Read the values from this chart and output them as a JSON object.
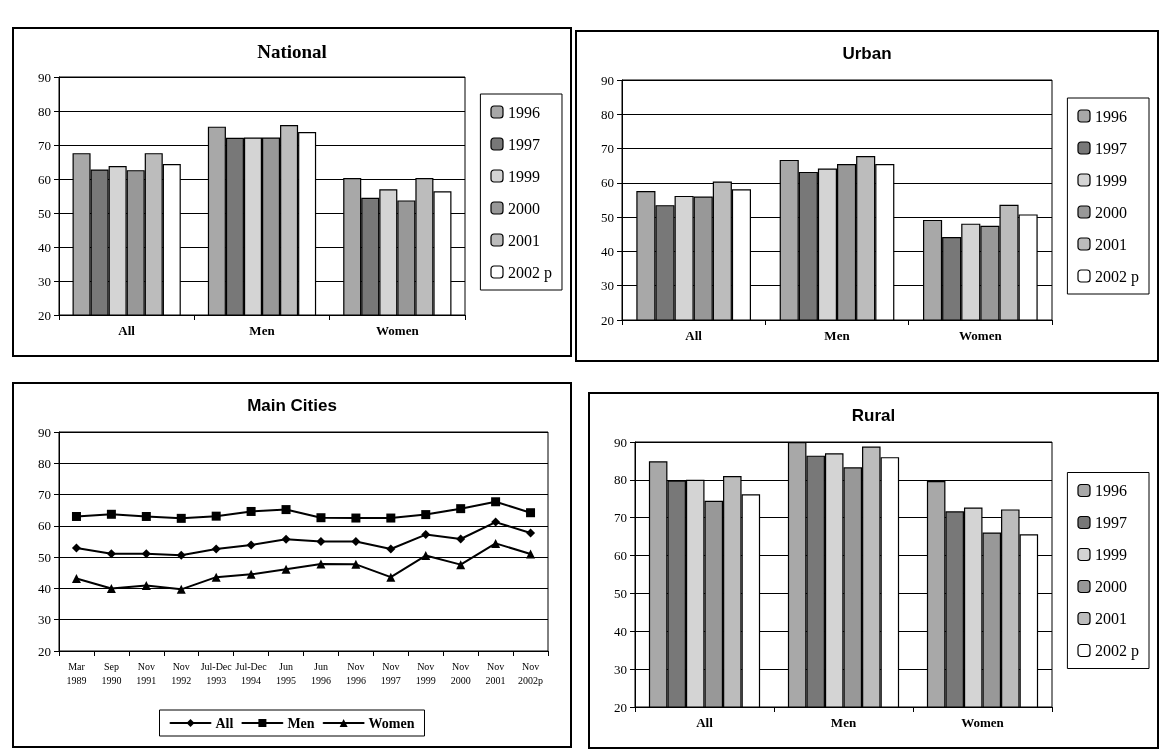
{
  "chart_data": [
    {
      "type": "bar",
      "title": "National",
      "categories": [
        "All",
        "Men",
        "Women"
      ],
      "ylim": [
        20,
        90
      ],
      "yticks": [
        20,
        30,
        40,
        50,
        60,
        70,
        80,
        90
      ],
      "grid": "y",
      "legend": "right",
      "series": [
        {
          "name": "1996",
          "color": "#a8a8a8",
          "values": [
            67.6,
            75.4,
            60.3
          ]
        },
        {
          "name": "1997",
          "color": "#787878",
          "values": [
            62.8,
            72.1,
            54.5
          ]
        },
        {
          "name": "1999",
          "color": "#d4d4d4",
          "values": [
            63.8,
            72.2,
            57.0
          ]
        },
        {
          "name": "2000",
          "color": "#989898",
          "values": [
            62.6,
            72.2,
            53.7
          ]
        },
        {
          "name": "2001",
          "color": "#bcbcbc",
          "values": [
            67.6,
            75.9,
            60.3
          ]
        },
        {
          "name": "2002 p",
          "color": "#ffffff",
          "values": [
            64.4,
            73.8,
            56.4
          ]
        }
      ]
    },
    {
      "type": "bar",
      "title": "Urban",
      "categories": [
        "All",
        "Men",
        "Women"
      ],
      "ylim": [
        20,
        90
      ],
      "yticks": [
        20,
        30,
        40,
        50,
        60,
        70,
        80,
        90
      ],
      "grid": "y",
      "legend": "right",
      "series": [
        {
          "name": "1996",
          "color": "#a8a8a8",
          "values": [
            57.6,
            66.7,
            49.2
          ]
        },
        {
          "name": "1997",
          "color": "#787878",
          "values": [
            53.5,
            63.2,
            44.2
          ]
        },
        {
          "name": "1999",
          "color": "#d4d4d4",
          "values": [
            56.2,
            64.2,
            48.1
          ]
        },
        {
          "name": "2000",
          "color": "#989898",
          "values": [
            56.0,
            65.5,
            47.5
          ]
        },
        {
          "name": "2001",
          "color": "#bcbcbc",
          "values": [
            60.4,
            67.8,
            53.6
          ]
        },
        {
          "name": "2002 p",
          "color": "#ffffff",
          "values": [
            58.1,
            65.5,
            50.8
          ]
        }
      ]
    },
    {
      "type": "line",
      "title": "Main Cities",
      "categories": [
        "Mar 1989",
        "Sep 1990",
        "Nov 1991",
        "Nov 1992",
        "Jul-Dec 1993",
        "Jul-Dec 1994",
        "Jun 1995",
        "Jun 1996",
        "Nov 1996",
        "Nov 1997",
        "Nov 1999",
        "Nov 2000",
        "Nov 2001",
        "Nov 2002p"
      ],
      "ylim": [
        20,
        90
      ],
      "yticks": [
        20,
        30,
        40,
        50,
        60,
        70,
        80,
        90
      ],
      "grid": "y",
      "legend": "bottom",
      "line_style": "solid",
      "series": [
        {
          "name": "All",
          "color": "#000000",
          "marker": "diamond",
          "values": [
            52.9,
            51.1,
            51.1,
            50.6,
            52.6,
            53.9,
            55.7,
            55.0,
            55.0,
            52.6,
            57.2,
            55.8,
            61.2,
            57.7
          ]
        },
        {
          "name": "Men",
          "color": "#000000",
          "marker": "square",
          "values": [
            63.0,
            63.7,
            63.0,
            62.4,
            63.1,
            64.6,
            65.2,
            62.6,
            62.5,
            62.5,
            63.6,
            65.5,
            67.7,
            64.2
          ]
        },
        {
          "name": "Women",
          "color": "#000000",
          "marker": "triangle",
          "values": [
            43.2,
            40.0,
            40.9,
            39.7,
            43.6,
            44.5,
            46.1,
            47.8,
            47.7,
            43.6,
            50.5,
            47.6,
            54.4,
            51.0
          ]
        }
      ]
    },
    {
      "type": "bar",
      "title": "Rural",
      "categories": [
        "All",
        "Men",
        "Women"
      ],
      "ylim": [
        20,
        90
      ],
      "yticks": [
        20,
        30,
        40,
        50,
        60,
        70,
        80,
        90
      ],
      "grid": "y",
      "legend": "right",
      "series": [
        {
          "name": "1996",
          "color": "#a8a8a8",
          "values": [
            84.9,
            90.0,
            79.7
          ]
        },
        {
          "name": "1997",
          "color": "#787878",
          "values": [
            79.8,
            86.4,
            71.7
          ]
        },
        {
          "name": "1999",
          "color": "#d4d4d4",
          "values": [
            80.0,
            87.0,
            72.7
          ]
        },
        {
          "name": "2000",
          "color": "#989898",
          "values": [
            74.5,
            83.3,
            66.1
          ]
        },
        {
          "name": "2001",
          "color": "#bcbcbc",
          "values": [
            81.0,
            88.8,
            72.2
          ]
        },
        {
          "name": "2002 p",
          "color": "#ffffff",
          "values": [
            76.2,
            86.0,
            65.6
          ]
        }
      ]
    }
  ]
}
